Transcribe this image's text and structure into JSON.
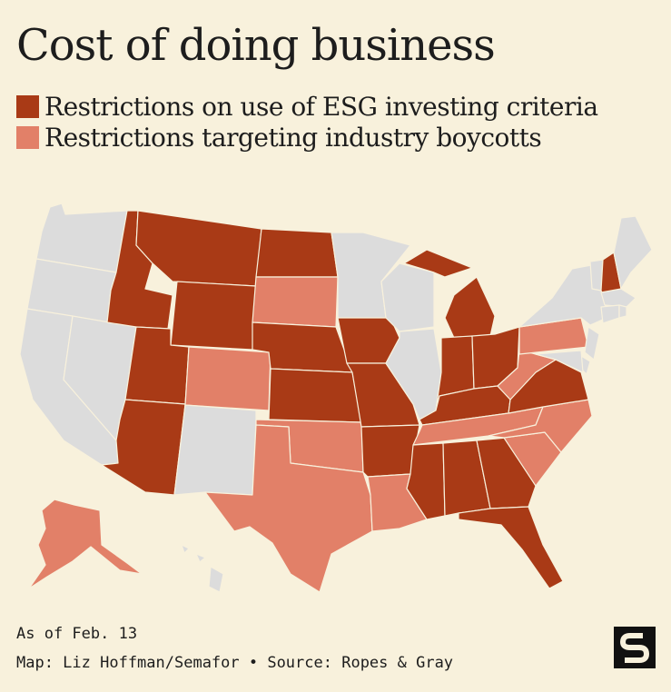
{
  "title": "Cost of doing business",
  "legend": [
    {
      "label": "Restrictions on use of ESG investing criteria",
      "color": "#a93a16"
    },
    {
      "label": "Restrictions targeting industry boycotts",
      "color": "#e28068"
    }
  ],
  "colors": {
    "none": "#dcdcdc",
    "border": "#f8f1dc",
    "background": "#f8f1dc"
  },
  "states": {
    "esg": [
      "ID",
      "MT",
      "WY",
      "ND",
      "UT",
      "AZ",
      "NE",
      "KS",
      "MO",
      "IA",
      "AR",
      "MS",
      "AL",
      "GA",
      "FL",
      "IN",
      "OH",
      "KY",
      "VA",
      "MI",
      "NH"
    ],
    "boycott": [
      "SD",
      "CO",
      "OK",
      "TX",
      "LA",
      "TN",
      "NC",
      "SC",
      "WV",
      "PA",
      "AK"
    ],
    "none": [
      "WA",
      "OR",
      "CA",
      "NV",
      "NM",
      "MN",
      "WI",
      "IL",
      "NY",
      "VT",
      "ME",
      "MA",
      "CT",
      "RI",
      "NJ",
      "DE",
      "MD",
      "HI"
    ]
  },
  "footer": {
    "date": "As of Feb. 13",
    "credit": "Map: Liz Hoffman/Semafor • Source: Ropes & Gray"
  },
  "logo": {
    "letter": "S"
  }
}
